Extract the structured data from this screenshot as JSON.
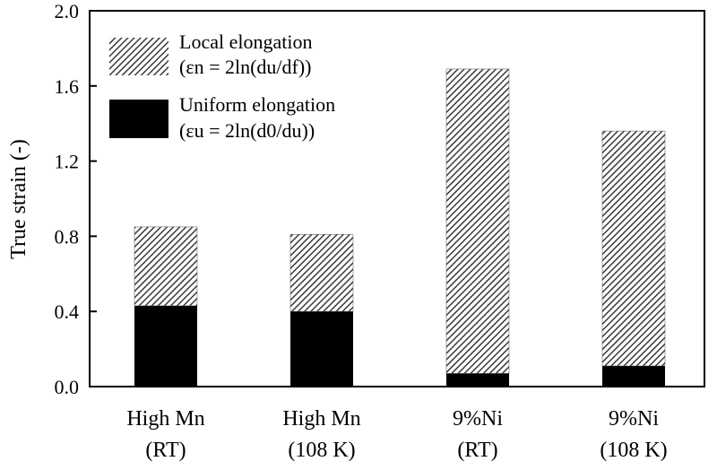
{
  "chart_data": {
    "type": "bar",
    "stacked": true,
    "ylabel": "True strain (-)",
    "ylim": [
      0,
      2.0
    ],
    "yticks": [
      "0.0",
      "0.4",
      "0.8",
      "1.2",
      "1.6",
      "2.0"
    ],
    "categories": [
      {
        "line1": "High  Mn",
        "line2": "(RT)"
      },
      {
        "line1": "High  Mn",
        "line2": "(108 K)"
      },
      {
        "line1": "9%Ni",
        "line2": "(RT)"
      },
      {
        "line1": "9%Ni",
        "line2": "(108 K)"
      }
    ],
    "series": [
      {
        "name": "Uniform elongation",
        "formula": "(εu = 2ln(d0/du))",
        "fill": "solid-black",
        "values": [
          0.43,
          0.4,
          0.07,
          0.11
        ]
      },
      {
        "name": "Local elongation",
        "formula": "(εn = 2ln(du/df))",
        "fill": "hatched",
        "values": [
          0.42,
          0.41,
          1.62,
          1.25
        ]
      }
    ],
    "grid": false,
    "legend_position": "top-left"
  }
}
